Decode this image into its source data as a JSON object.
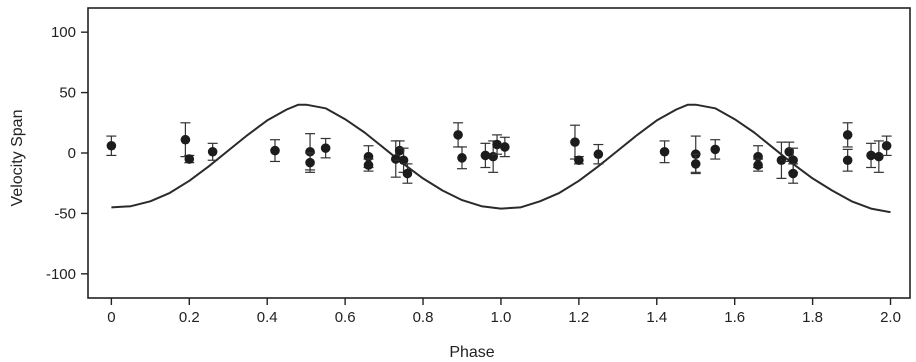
{
  "chart_data": {
    "type": "scatter",
    "title": "",
    "xlabel": "Phase",
    "ylabel": "Velocity Span",
    "xlim": [
      -0.06,
      2.05
    ],
    "ylim": [
      -120,
      120
    ],
    "x_ticks": [
      0,
      0.2,
      0.4,
      0.6,
      0.8,
      1.0,
      1.2,
      1.4,
      1.6,
      1.8,
      2.0
    ],
    "x_tick_labels": [
      "0",
      "0.2",
      "0.4",
      "0.6",
      "0.8",
      "1.0",
      "1.2",
      "1.4",
      "1.6",
      "1.8",
      "2.0"
    ],
    "y_ticks": [
      -100,
      -50,
      0,
      50,
      100
    ],
    "y_tick_labels": [
      "-100",
      "-50",
      "0",
      "50",
      "100"
    ],
    "grid": false,
    "colors": {
      "marker": "#1c1c1c",
      "line": "#2a2a2a",
      "axis": "#222222"
    },
    "points": [
      {
        "x": 0.0,
        "y": 6,
        "err": 8
      },
      {
        "x": 0.19,
        "y": 11,
        "err": 14
      },
      {
        "x": 0.2,
        "y": -5,
        "err": 3
      },
      {
        "x": 0.26,
        "y": 1,
        "err": 7
      },
      {
        "x": 0.42,
        "y": 2,
        "err": 9
      },
      {
        "x": 0.51,
        "y": 1,
        "err": 15
      },
      {
        "x": 0.51,
        "y": -8,
        "err": 8
      },
      {
        "x": 0.55,
        "y": 4,
        "err": 8
      },
      {
        "x": 0.66,
        "y": -3,
        "err": 9
      },
      {
        "x": 0.66,
        "y": -10,
        "err": 5
      },
      {
        "x": 0.73,
        "y": -5,
        "err": 15
      },
      {
        "x": 0.74,
        "y": 2,
        "err": 8
      },
      {
        "x": 0.75,
        "y": -6,
        "err": 10
      },
      {
        "x": 0.76,
        "y": -17,
        "err": 8
      },
      {
        "x": 0.89,
        "y": 15,
        "err": 10
      },
      {
        "x": 0.9,
        "y": -4,
        "err": 9
      },
      {
        "x": 0.96,
        "y": -2,
        "err": 10
      },
      {
        "x": 0.98,
        "y": -3,
        "err": 13
      },
      {
        "x": 0.99,
        "y": 7,
        "err": 8
      },
      {
        "x": 1.01,
        "y": 5,
        "err": 8
      },
      {
        "x": 1.19,
        "y": 9,
        "err": 14
      },
      {
        "x": 1.2,
        "y": -6,
        "err": 3
      },
      {
        "x": 1.25,
        "y": -1,
        "err": 8
      },
      {
        "x": 1.42,
        "y": 1,
        "err": 9
      },
      {
        "x": 1.5,
        "y": -1,
        "err": 15
      },
      {
        "x": 1.5,
        "y": -9,
        "err": 8
      },
      {
        "x": 1.55,
        "y": 3,
        "err": 8
      },
      {
        "x": 1.66,
        "y": -3,
        "err": 9
      },
      {
        "x": 1.66,
        "y": -10,
        "err": 5
      },
      {
        "x": 1.72,
        "y": -6,
        "err": 15
      },
      {
        "x": 1.74,
        "y": 1,
        "err": 8
      },
      {
        "x": 1.75,
        "y": -6,
        "err": 10
      },
      {
        "x": 1.75,
        "y": -17,
        "err": 8
      },
      {
        "x": 1.89,
        "y": 15,
        "err": 10
      },
      {
        "x": 1.89,
        "y": -6,
        "err": 9
      },
      {
        "x": 1.95,
        "y": -2,
        "err": 10
      },
      {
        "x": 1.97,
        "y": -3,
        "err": 13
      },
      {
        "x": 1.99,
        "y": 6,
        "err": 8
      }
    ],
    "curve": {
      "description": "model sinusoid",
      "x": [
        0.0,
        0.05,
        0.1,
        0.15,
        0.2,
        0.25,
        0.3,
        0.35,
        0.4,
        0.45,
        0.48,
        0.5,
        0.55,
        0.6,
        0.65,
        0.7,
        0.75,
        0.8,
        0.85,
        0.9,
        0.95,
        1.0,
        1.05,
        1.1,
        1.15,
        1.2,
        1.25,
        1.3,
        1.35,
        1.4,
        1.45,
        1.48,
        1.5,
        1.55,
        1.6,
        1.65,
        1.7,
        1.75,
        1.8,
        1.85,
        1.9,
        1.95,
        2.0
      ],
      "y": [
        -45,
        -44,
        -40,
        -33,
        -23,
        -11,
        2,
        15,
        27,
        36,
        40,
        40,
        37,
        28,
        17,
        4,
        -9,
        -21,
        -31,
        -39,
        -44,
        -46,
        -45,
        -40,
        -33,
        -23,
        -11,
        2,
        15,
        27,
        36,
        40,
        40,
        37,
        28,
        17,
        4,
        -9,
        -21,
        -31,
        -40,
        -46,
        -49
      ]
    }
  }
}
